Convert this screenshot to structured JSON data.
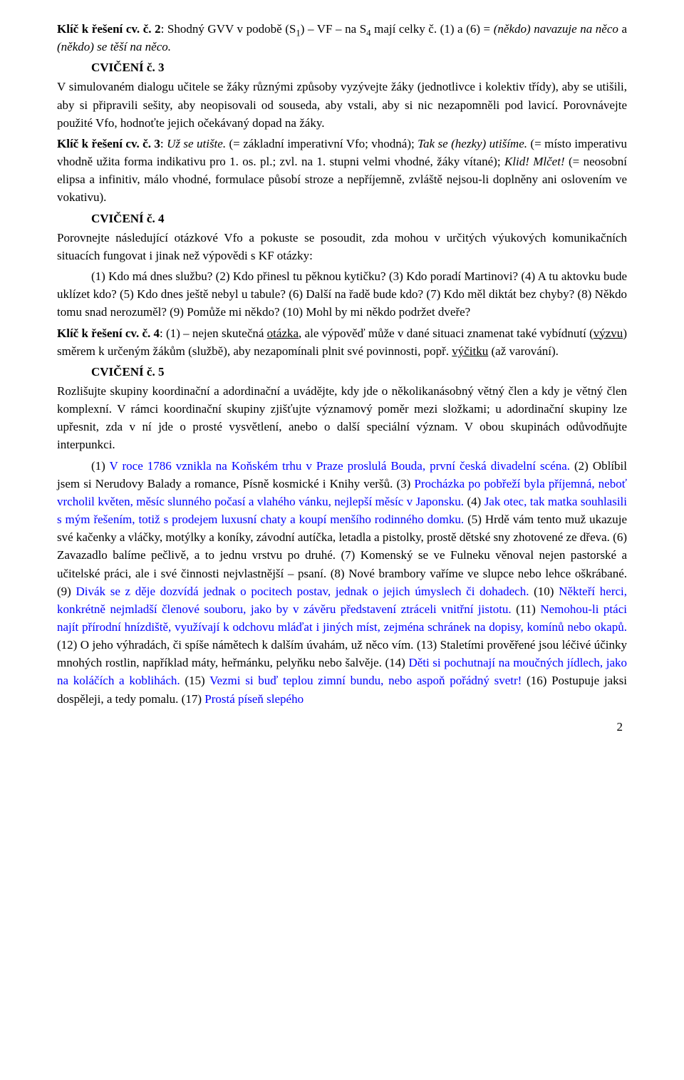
{
  "p1": {
    "klic_label": "Klíč k řešení cv. č. 2",
    "sep": ": ",
    "body1": "Shodný GVV v podobě (S",
    "sub1": "1",
    "body2": ") – VF – na S",
    "sub2": "4",
    "body3": " mají celky č. (1) a (6) = ",
    "line2": "(někdo) navazuje na něco",
    "conj": " a ",
    "line3": "(někdo) se těší na něco."
  },
  "h3": "CVIČENÍ č. 3",
  "p3": "V simulovaném dialogu učitele se žáky různými způsoby vyzývejte žáky (jednotlivce i kolektiv třídy), aby se utišili, aby si připravili sešity, aby neopisovali od souseda, aby vstali, aby si nic nezapomněli pod lavicí. Porovnávejte použité Vfo, hodnoťte jejich očekávaný dopad na žáky.",
  "p3k": {
    "klic_label": "Klíč k řešení cv. č. 3",
    "sep": ": ",
    "i1": "Už se utište.",
    "t1": " (= základní imperativní Vfo; vhodná); ",
    "i2": "Tak se (hezky) utišíme.",
    "t2": " (= místo imperativu vhodně užita forma indikativu pro 1. os. pl.; zvl. na 1. stupni velmi vhodné, žáky vítané); ",
    "i3": "Klid! Mlčet!",
    "t3": " (= neosobní elipsa a infinitiv, málo vhodné, formulace působí stroze a nepříjemně, zvláště nejsou-li doplněny ani oslovením ve vokativu)."
  },
  "h4": "CVIČENÍ č. 4",
  "p4a": "Porovnejte následující otázkové Vfo a pokuste se posoudit, zda mohou v určitých výukových komunikačních situacích fungovat i jinak než výpovědi s KF otázky:",
  "p4b": "(1) Kdo má dnes službu? (2) Kdo přinesl tu pěknou kytičku? (3) Kdo poradí Martinovi? (4) A tu aktovku bude uklízet kdo? (5) Kdo dnes ještě nebyl u tabule? (6) Další na řadě bude kdo? (7) Kdo měl diktát bez chyby? (8) Někdo tomu snad nerozuměl? (9) Pomůže mi někdo? (10) Mohl by mi někdo podržet dveře?",
  "p4k": {
    "klic_label": "Klíč k řešení cv. č. 4",
    "t1": ": (1) – nejen skutečná ",
    "u1": "otázka",
    "t2": ", ale výpověď může v dané situaci znamenat také vybídnutí (",
    "u2": "výzvu",
    "t3": ") směrem k určeným žákům (službě), aby nezapomínali plnit své povinnosti, popř. ",
    "u3": "výčitku",
    "t4": " (až varování)."
  },
  "h5": "CVIČENÍ č. 5",
  "p5a": "Rozlišujte skupiny koordinační a adordinační a uvádějte, kdy jde o několikanásobný větný člen a kdy je větný člen komplexní. V rámci koordinační skupiny zjišťujte významový poměr mezi složkami; u adordinační skupiny lze upřesnit, zda v ní jde o prosté vysvětlení, anebo o další speciální význam. V obou skupinách odůvodňujte interpunkci.",
  "p5b": {
    "t1": "(1) ",
    "b1": "V roce 1786 vznikla na Koňském trhu v Praze proslulá Bouda, první česká divadelní scéna.",
    "t2": " (2) Oblíbil jsem si Nerudovy Balady a romance, Písně kosmické i Knihy veršů. (3) ",
    "b2": "Procházka po pobřeží byla příjemná, neboť vrcholil květen, měsíc slunného počasí a vlahého vánku, nejlepší měsíc v Japonsku.",
    "t3": " (4) ",
    "b3": "Jak otec, tak matka souhlasili s mým řešením, totiž s prodejem luxusní chaty a koupí menšího rodinného domku.",
    "t4": " (5) Hrdě vám tento muž ukazuje své kačenky a vláčky, motýlky a koníky, závodní autíčka, letadla a pistolky, prostě dětské sny zhotovené ze dřeva. (6) Zavazadlo balíme pečlivě, a to jednu vrstvu po druhé. (7) Komenský se ve Fulneku věnoval nejen pastorské a učitelské práci, ale i své činnosti nejvlastnější – psaní. (8) Nové brambory vaříme ve slupce nebo lehce oškrábané. (9) ",
    "b4": "Divák se z děje dozvídá jednak o pocitech postav, jednak o jejich úmyslech či dohadech.",
    "t5": " (10) ",
    "b5": "Někteří herci, konkrétně nejmladší členové souboru, jako by v závěru představení ztráceli vnitřní jistotu.",
    "t6": " (11) ",
    "b6": "Nemohou-li ptáci najít přírodní hnízdiště, využívají k odchovu mláďat i jiných míst, zejména schránek na dopisy, komínů nebo okapů.",
    "t7": " (12) O jeho výhradách, či spíše námětech k dalším úvahám, už něco vím. (13) Staletími prověřené jsou léčivé účinky mnohých rostlin, například máty, heřmánku, pelyňku nebo šalvěje. (14) ",
    "b7": "Děti si pochutnají na moučných jídlech, jako na koláčích a koblihách.",
    "t8": " (15) ",
    "b8": "Vezmi si buď teplou zimní bundu, nebo aspoň pořádný svetr!",
    "t9": " (16) Postupuje jaksi dospěleji, a tedy pomalu. (17) ",
    "b9": "Prostá píseň slepého"
  },
  "pagenum": "2"
}
